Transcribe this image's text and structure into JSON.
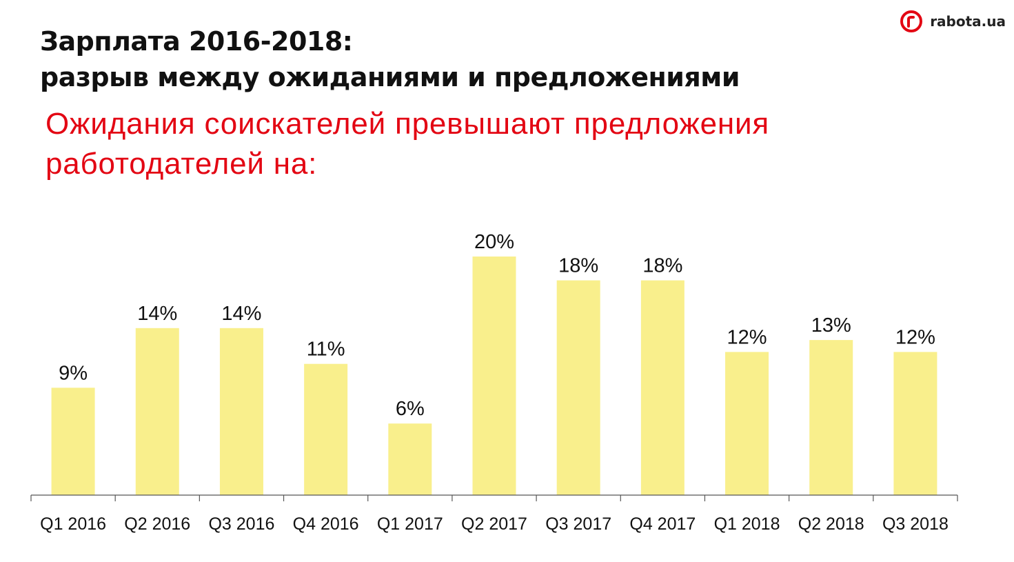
{
  "header": {
    "title_line1": "Зарплата 2016-2018:",
    "title_line2": "разрыв между ожиданиями и предложениями",
    "subtitle_line1": "Ожидания соискателей превышают предложения",
    "subtitle_line2": "работодателей на:"
  },
  "logo": {
    "text": "rabota.ua",
    "icon": "rabota-logo-icon"
  },
  "colors": {
    "bar": "#f9ef8c",
    "accent": "#e30613",
    "axis": "#555555",
    "text": "#111111"
  },
  "chart_data": {
    "type": "bar",
    "categories": [
      "Q1 2016",
      "Q2 2016",
      "Q3 2016",
      "Q4 2016",
      "Q1 2017",
      "Q2 2017",
      "Q3 2017",
      "Q4 2017",
      "Q1 2018",
      "Q2 2018",
      "Q3 2018"
    ],
    "values": [
      9,
      14,
      14,
      11,
      6,
      20,
      18,
      18,
      12,
      13,
      12
    ],
    "value_labels": [
      "9%",
      "14%",
      "14%",
      "11%",
      "6%",
      "20%",
      "18%",
      "18%",
      "12%",
      "13%",
      "12%"
    ],
    "ylim": [
      0,
      20
    ],
    "grid": false,
    "legend": "none"
  }
}
